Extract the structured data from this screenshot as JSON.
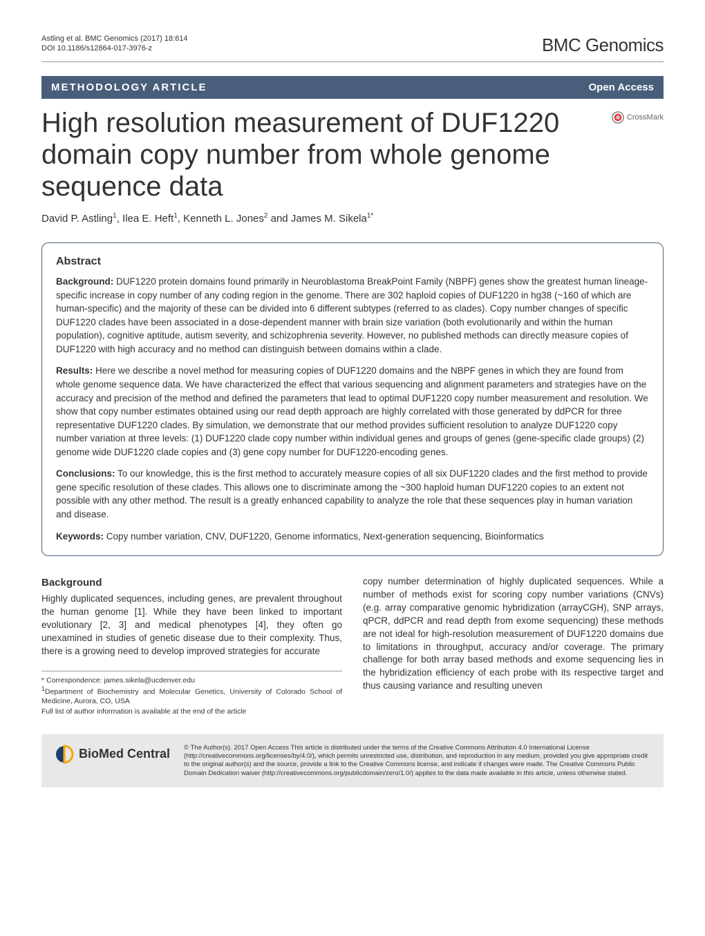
{
  "meta": {
    "citation": "Astling et al. BMC Genomics  (2017) 18:614",
    "doi": "DOI 10.1186/s12864-017-3976-z",
    "journal": "BMC Genomics"
  },
  "article_type_bar": {
    "type": "METHODOLOGY ARTICLE",
    "access": "Open Access"
  },
  "crossmark": {
    "label": "CrossMark",
    "icon_color_outer": "#ef3e42",
    "icon_color_inner": "#cccccc"
  },
  "title": "High resolution measurement of DUF1220 domain copy number from whole genome sequence data",
  "authors_html": "David P. Astling<sup>1</sup>, Ilea E. Heft<sup>1</sup>, Kenneth L. Jones<sup>2</sup> and James M. Sikela<sup>1*</sup>",
  "abstract": {
    "heading": "Abstract",
    "background_label": "Background:",
    "background_text": " DUF1220 protein domains found primarily in Neuroblastoma BreakPoint Family (NBPF) genes show the greatest human lineage-specific increase in copy number of any coding region in the genome. There are 302 haploid copies of DUF1220 in hg38 (~160 of which are human-specific) and the majority of these can be divided into 6 different subtypes (referred to as clades). Copy number changes of specific DUF1220 clades have been associated in a dose-dependent manner with brain size variation (both evolutionarily and within the human population), cognitive aptitude, autism severity, and schizophrenia severity. However, no published methods can directly measure copies of DUF1220 with high accuracy and no method can distinguish between domains within a clade.",
    "results_label": "Results:",
    "results_text": " Here we describe a novel method for measuring copies of DUF1220 domains and the NBPF genes in which they are found from whole genome sequence data. We have characterized the effect that various sequencing and alignment parameters and strategies have on the accuracy and precision of the method and defined the parameters that lead to optimal DUF1220 copy number measurement and resolution. We show that copy number estimates obtained using our read depth approach are highly correlated with those generated by ddPCR for three representative DUF1220 clades. By simulation, we demonstrate that our method provides sufficient resolution to analyze DUF1220 copy number variation at three levels: (1) DUF1220 clade copy number within individual genes and groups of genes (gene-specific clade groups) (2) genome wide DUF1220 clade copies and (3) gene copy number for DUF1220-encoding genes.",
    "conclusions_label": "Conclusions:",
    "conclusions_text": " To our knowledge, this is the first method to accurately measure copies of all six DUF1220 clades and the first method to provide gene specific resolution of these clades. This allows one to discriminate among the ~300 haploid human DUF1220 copies to an extent not possible with any other method. The result is a greatly enhanced capability to analyze the role that these sequences play in human variation and disease.",
    "keywords_label": "Keywords:",
    "keywords_text": " Copy number variation, CNV, DUF1220, Genome informatics, Next-generation sequencing, Bioinformatics"
  },
  "body": {
    "heading": "Background",
    "col1_text": "Highly duplicated sequences, including genes, are prevalent throughout the human genome [1]. While they have been linked to important evolutionary [2, 3] and medical phenotypes [4], they often go unexamined in studies of genetic disease due to their complexity. Thus, there is a growing need to develop improved strategies for accurate",
    "col2_text": "copy number determination of highly duplicated sequences. While a number of methods exist for scoring copy number variations (CNVs) (e.g. array comparative genomic hybridization (arrayCGH), SNP arrays, qPCR, ddPCR and read depth from exome sequencing) these methods are not ideal for high-resolution measurement of DUF1220 domains due to limitations in throughput, accuracy and/or coverage. The primary challenge for both array based methods and exome sequencing lies in the hybridization efficiency of each probe with its respective target and thus causing variance and resulting uneven"
  },
  "correspondence": {
    "line1": "* Correspondence: james.sikela@ucdenver.edu",
    "line2_html": "<sup>1</sup>Department of Biochemistry and Molecular Genetics, University of Colorado School of Medicine, Aurora, CO, USA",
    "line3": "Full list of author information is available at the end of the article"
  },
  "footer": {
    "logo_text": "BioMed Central",
    "logo_colors": {
      "left": "#1b3e6f",
      "right": "#f7a600"
    },
    "license": "© The Author(s). 2017 Open Access This article is distributed under the terms of the Creative Commons Attribution 4.0 International License (http://creativecommons.org/licenses/by/4.0/), which permits unrestricted use, distribution, and reproduction in any medium, provided you give appropriate credit to the original author(s) and the source, provide a link to the Creative Commons license, and indicate if changes were made. The Creative Commons Public Domain Dedication waiver (http://creativecommons.org/publicdomain/zero/1.0/) applies to the data made available in this article, unless otherwise stated."
  },
  "colors": {
    "bar_bg": "#485e7a",
    "footer_bg": "#e8e8e8",
    "text": "#333333"
  }
}
